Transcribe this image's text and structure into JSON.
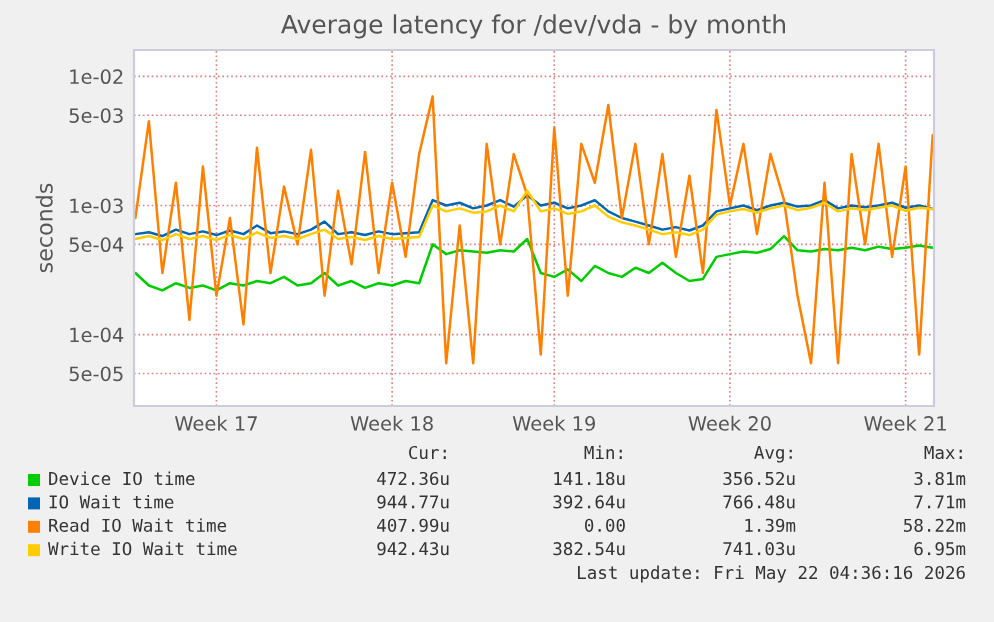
{
  "chart_data": {
    "type": "line",
    "title": "Average latency for /dev/vda - by month",
    "ylabel": "seconds",
    "categories": [
      null,
      null,
      null,
      null,
      null,
      null,
      "Week 17",
      null,
      null,
      null,
      null,
      null,
      null,
      null,
      null,
      null,
      null,
      null,
      null,
      "Week 18",
      null,
      null,
      null,
      null,
      null,
      null,
      null,
      null,
      null,
      null,
      null,
      "Week 19",
      null,
      null,
      null,
      null,
      null,
      null,
      null,
      null,
      null,
      null,
      null,
      null,
      "Week 20",
      null,
      null,
      null,
      null,
      null,
      null,
      null,
      null,
      null,
      null,
      null,
      null,
      "Week 21",
      null,
      null
    ],
    "series": [
      {
        "name": "Device IO time",
        "color": "#00cc00",
        "values": [
          0.0003,
          0.00024,
          0.00022,
          0.00025,
          0.00023,
          0.00024,
          0.00022,
          0.00025,
          0.00024,
          0.00026,
          0.00025,
          0.00028,
          0.00024,
          0.00025,
          0.0003,
          0.00024,
          0.00026,
          0.00023,
          0.00025,
          0.00024,
          0.00026,
          0.00025,
          0.0005,
          0.00042,
          0.00045,
          0.00044,
          0.00043,
          0.00045,
          0.00044,
          0.00055,
          0.0003,
          0.00028,
          0.00032,
          0.00026,
          0.00034,
          0.0003,
          0.00028,
          0.00033,
          0.0003,
          0.00036,
          0.0003,
          0.00026,
          0.00027,
          0.0004,
          0.00042,
          0.00044,
          0.00043,
          0.00046,
          0.00058,
          0.00045,
          0.00044,
          0.00046,
          0.00045,
          0.00047,
          0.00045,
          0.00048,
          0.00046,
          0.00047,
          0.00049,
          0.00047
        ]
      },
      {
        "name": "IO Wait time",
        "color": "#0066b3",
        "values": [
          0.0006,
          0.00062,
          0.00058,
          0.00065,
          0.0006,
          0.00063,
          0.00059,
          0.00064,
          0.0006,
          0.0007,
          0.00061,
          0.00063,
          0.0006,
          0.00065,
          0.00075,
          0.0006,
          0.00062,
          0.00059,
          0.00063,
          0.0006,
          0.00061,
          0.00062,
          0.0011,
          0.001,
          0.00105,
          0.00095,
          0.001,
          0.0011,
          0.00098,
          0.0012,
          0.001,
          0.00105,
          0.00095,
          0.001,
          0.0011,
          0.0009,
          0.0008,
          0.00075,
          0.0007,
          0.00065,
          0.00068,
          0.00064,
          0.0007,
          0.0009,
          0.00095,
          0.001,
          0.00092,
          0.001,
          0.00105,
          0.00098,
          0.001,
          0.0011,
          0.00095,
          0.001,
          0.00097,
          0.001,
          0.00105,
          0.00096,
          0.001,
          0.00094
        ]
      },
      {
        "name": "Read IO Wait time",
        "color": "#ff8000",
        "values": [
          0.0008,
          0.0045,
          0.0003,
          0.0015,
          0.00013,
          0.002,
          0.0002,
          0.0008,
          0.00012,
          0.0028,
          0.0003,
          0.0014,
          0.0005,
          0.0027,
          0.0002,
          0.0013,
          0.00035,
          0.0026,
          0.0003,
          0.0015,
          0.0004,
          0.0025,
          0.007,
          6e-05,
          0.0007,
          6e-05,
          0.003,
          0.0005,
          0.0025,
          0.0012,
          7e-05,
          0.004,
          0.0002,
          0.003,
          0.0015,
          0.006,
          0.0008,
          0.003,
          0.0005,
          0.0025,
          0.0004,
          0.0017,
          0.0003,
          0.0055,
          0.001,
          0.003,
          0.0006,
          0.0025,
          0.0011,
          0.0002,
          6e-05,
          0.0015,
          6e-05,
          0.0025,
          0.0005,
          0.003,
          0.0004,
          0.002,
          7e-05,
          0.0035
        ]
      },
      {
        "name": "Write IO Wait time",
        "color": "#ffcc00",
        "values": [
          0.00055,
          0.00058,
          0.00054,
          0.0006,
          0.00055,
          0.00058,
          0.00054,
          0.00059,
          0.00055,
          0.00062,
          0.00056,
          0.00058,
          0.00055,
          0.0006,
          0.00065,
          0.00055,
          0.00057,
          0.00054,
          0.00058,
          0.00055,
          0.00056,
          0.00057,
          0.001,
          0.0009,
          0.00095,
          0.00088,
          0.0009,
          0.001,
          0.0009,
          0.0013,
          0.0009,
          0.00095,
          0.00086,
          0.0009,
          0.001,
          0.00082,
          0.00074,
          0.0007,
          0.00065,
          0.0006,
          0.00062,
          0.00059,
          0.00065,
          0.00085,
          0.0009,
          0.00094,
          0.00088,
          0.00095,
          0.001,
          0.00092,
          0.00096,
          0.00105,
          0.0009,
          0.00095,
          0.00092,
          0.00096,
          0.001,
          0.00091,
          0.00096,
          0.00094
        ]
      }
    ],
    "log": true,
    "ylim": [
      2.8e-05,
      0.016
    ],
    "yticks": [
      {
        "value": 5e-05,
        "label": "5e-05"
      },
      {
        "value": 0.0001,
        "label": "1e-04"
      },
      {
        "value": 0.0005,
        "label": "5e-04"
      },
      {
        "value": 0.001,
        "label": "1e-03"
      },
      {
        "value": 0.005,
        "label": "5e-03"
      },
      {
        "value": 0.01,
        "label": "1e-02"
      }
    ],
    "grid": true,
    "legend": "bottom",
    "annotations": [
      "Cur:",
      "Min:",
      "Avg:",
      "Max:",
      "472.36u",
      "141.18u",
      "356.52u",
      "3.81m",
      "944.77u",
      "392.64u",
      "766.48u",
      "7.71m",
      "407.99u",
      "0.00",
      "1.39m",
      "58.22m",
      "942.43u",
      "382.54u",
      "741.03u",
      "6.95m",
      "Last update: Fri May 22 04:36:16 2026"
    ]
  }
}
